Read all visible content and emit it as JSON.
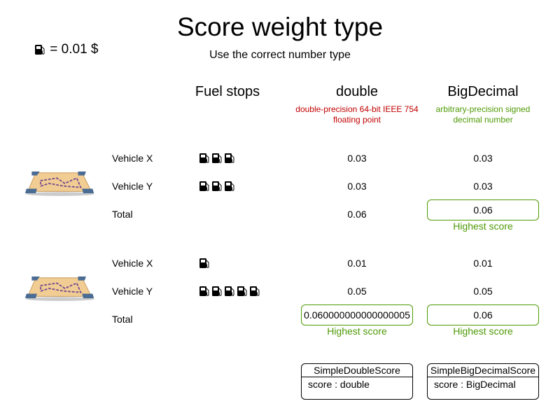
{
  "title": "Score weight type",
  "subtitle": "Use the correct number type",
  "legend": {
    "icon": "fuel-pump-icon",
    "text": "= 0.01 $"
  },
  "columns": {
    "fuel": "Fuel stops",
    "double": {
      "label": "double",
      "note": "double-precision 64-bit IEEE 754 floating point",
      "color": "#c00000"
    },
    "bigdecimal": {
      "label": "BigDecimal",
      "note": "arbitrary-precision signed decimal number",
      "color": "#4e9a06"
    }
  },
  "scenarios": [
    {
      "icon": "map-route-icon",
      "rows": [
        {
          "label": "Vehicle X",
          "fuel": 3,
          "double": "0.03",
          "big": "0.03"
        },
        {
          "label": "Vehicle Y",
          "fuel": 3,
          "double": "0.03",
          "big": "0.03"
        }
      ],
      "total": {
        "label": "Total",
        "double": "0.06",
        "big": "0.06"
      },
      "highest": [
        "big"
      ]
    },
    {
      "icon": "map-route-icon",
      "rows": [
        {
          "label": "Vehicle X",
          "fuel": 1,
          "double": "0.01",
          "big": "0.01"
        },
        {
          "label": "Vehicle Y",
          "fuel": 5,
          "double": "0.05",
          "big": "0.05"
        }
      ],
      "total": {
        "label": "Total",
        "double": "0.060000000000000005",
        "big": "0.06"
      },
      "highest": [
        "double",
        "big"
      ]
    }
  ],
  "highest_label": "Highest score",
  "classes": [
    {
      "name": "SimpleDoubleScore",
      "field": "score : double"
    },
    {
      "name": "SimpleBigDecimalScore",
      "field": "score : BigDecimal"
    }
  ]
}
